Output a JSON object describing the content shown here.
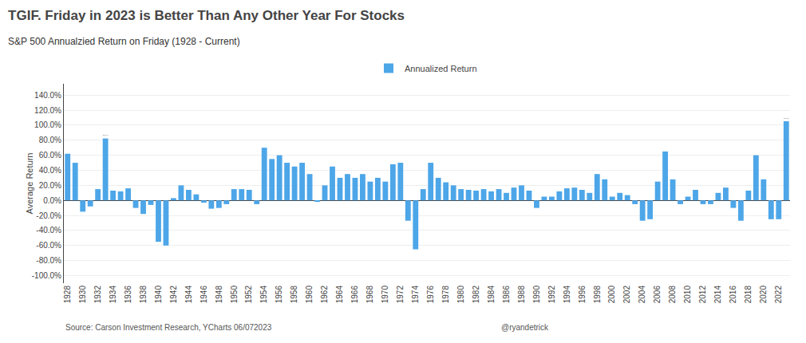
{
  "chart_data": {
    "type": "bar",
    "title": "TGIF. Friday in 2023 is Better Than Any Other Year For Stocks",
    "subtitle": "S&P 500 Annualzied Return on Friday (1928 - Current)",
    "ylabel": "Average Return",
    "source": "Source: Carson Investment Research, YCharts 06/072023",
    "credit": "@ryandetrick",
    "categories": [
      "1928",
      null,
      "1930",
      null,
      "1932",
      null,
      "1934",
      null,
      "1936",
      null,
      "1938",
      null,
      "1940",
      null,
      "1942",
      null,
      "1944",
      null,
      "1946",
      null,
      "1948",
      null,
      "1950",
      null,
      "1952",
      null,
      "1954",
      null,
      "1956",
      null,
      "1958",
      null,
      "1960",
      null,
      "1962",
      null,
      "1964",
      null,
      "1966",
      null,
      "1968",
      null,
      "1970",
      null,
      "1972",
      null,
      "1974",
      null,
      "1976",
      null,
      "1978",
      null,
      "1980",
      null,
      "1982",
      null,
      "1984",
      null,
      "1986",
      null,
      "1988",
      null,
      "1990",
      null,
      "1992",
      null,
      "1994",
      null,
      "1996",
      null,
      "1998",
      null,
      "2000",
      null,
      "2002",
      null,
      "2004",
      null,
      "2006",
      null,
      "2008",
      null,
      "2010",
      null,
      "2012",
      null,
      "2014",
      null,
      "2016",
      null,
      "2018",
      null,
      "2020",
      null,
      "2022",
      null
    ],
    "series": [
      {
        "name": "Annualized Return",
        "color": "#4da6e8",
        "values": [
          62,
          50,
          -15,
          -8,
          15,
          82.3,
          13,
          12,
          16,
          -10,
          -18,
          -6,
          -55,
          -60,
          3,
          20,
          14,
          8,
          -3,
          -11,
          -10,
          -5,
          15,
          15,
          14,
          -5,
          70,
          55,
          60,
          50,
          45,
          50,
          35,
          -2,
          20,
          45,
          30,
          35,
          30,
          35,
          25,
          30,
          25,
          48,
          50,
          -27,
          -65,
          15,
          50,
          30,
          24,
          20,
          15,
          14,
          13,
          15,
          12,
          15,
          10,
          17,
          20,
          13,
          -10,
          5,
          5,
          12,
          16,
          17,
          14,
          10,
          35,
          28,
          5,
          10,
          7,
          -5,
          -27,
          -25,
          25,
          65,
          28,
          -5,
          5,
          14,
          -5,
          -5,
          10,
          17,
          -10,
          -27,
          13,
          60,
          28,
          -25,
          -25,
          105.2
        ],
        "value_labels": [
          null,
          null,
          null,
          null,
          null,
          "82.3%",
          null,
          null,
          null,
          null,
          null,
          null,
          null,
          null,
          null,
          null,
          null,
          null,
          null,
          null,
          null,
          null,
          null,
          null,
          null,
          null,
          null,
          null,
          null,
          null,
          null,
          null,
          null,
          null,
          null,
          null,
          null,
          null,
          null,
          null,
          null,
          null,
          null,
          null,
          null,
          null,
          null,
          null,
          null,
          null,
          null,
          null,
          null,
          null,
          null,
          null,
          null,
          null,
          null,
          null,
          null,
          null,
          null,
          null,
          null,
          null,
          null,
          null,
          null,
          null,
          null,
          null,
          null,
          null,
          null,
          null,
          null,
          null,
          null,
          null,
          null,
          null,
          null,
          null,
          null,
          null,
          null,
          null,
          null,
          null,
          null,
          null,
          null,
          null,
          null,
          "105.2%"
        ]
      }
    ],
    "ylim": [
      -110,
      155
    ],
    "yticks": [
      {
        "value": -100,
        "label": "-100.0%"
      },
      {
        "value": -80,
        "label": "-80.0%"
      },
      {
        "value": -60,
        "label": "-60.0%"
      },
      {
        "value": -40,
        "label": "-40.0%"
      },
      {
        "value": -20,
        "label": "-20.0%"
      },
      {
        "value": 0,
        "label": "0.0%"
      },
      {
        "value": 20,
        "label": "20.0%"
      },
      {
        "value": 40,
        "label": "40.0%"
      },
      {
        "value": 60,
        "label": "60.0%"
      },
      {
        "value": 80,
        "label": "80.0%"
      },
      {
        "value": 100,
        "label": "100.0%"
      },
      {
        "value": 120,
        "label": "120.0%"
      },
      {
        "value": 140,
        "label": "140.0%"
      }
    ],
    "grid": true,
    "legend": "top"
  }
}
